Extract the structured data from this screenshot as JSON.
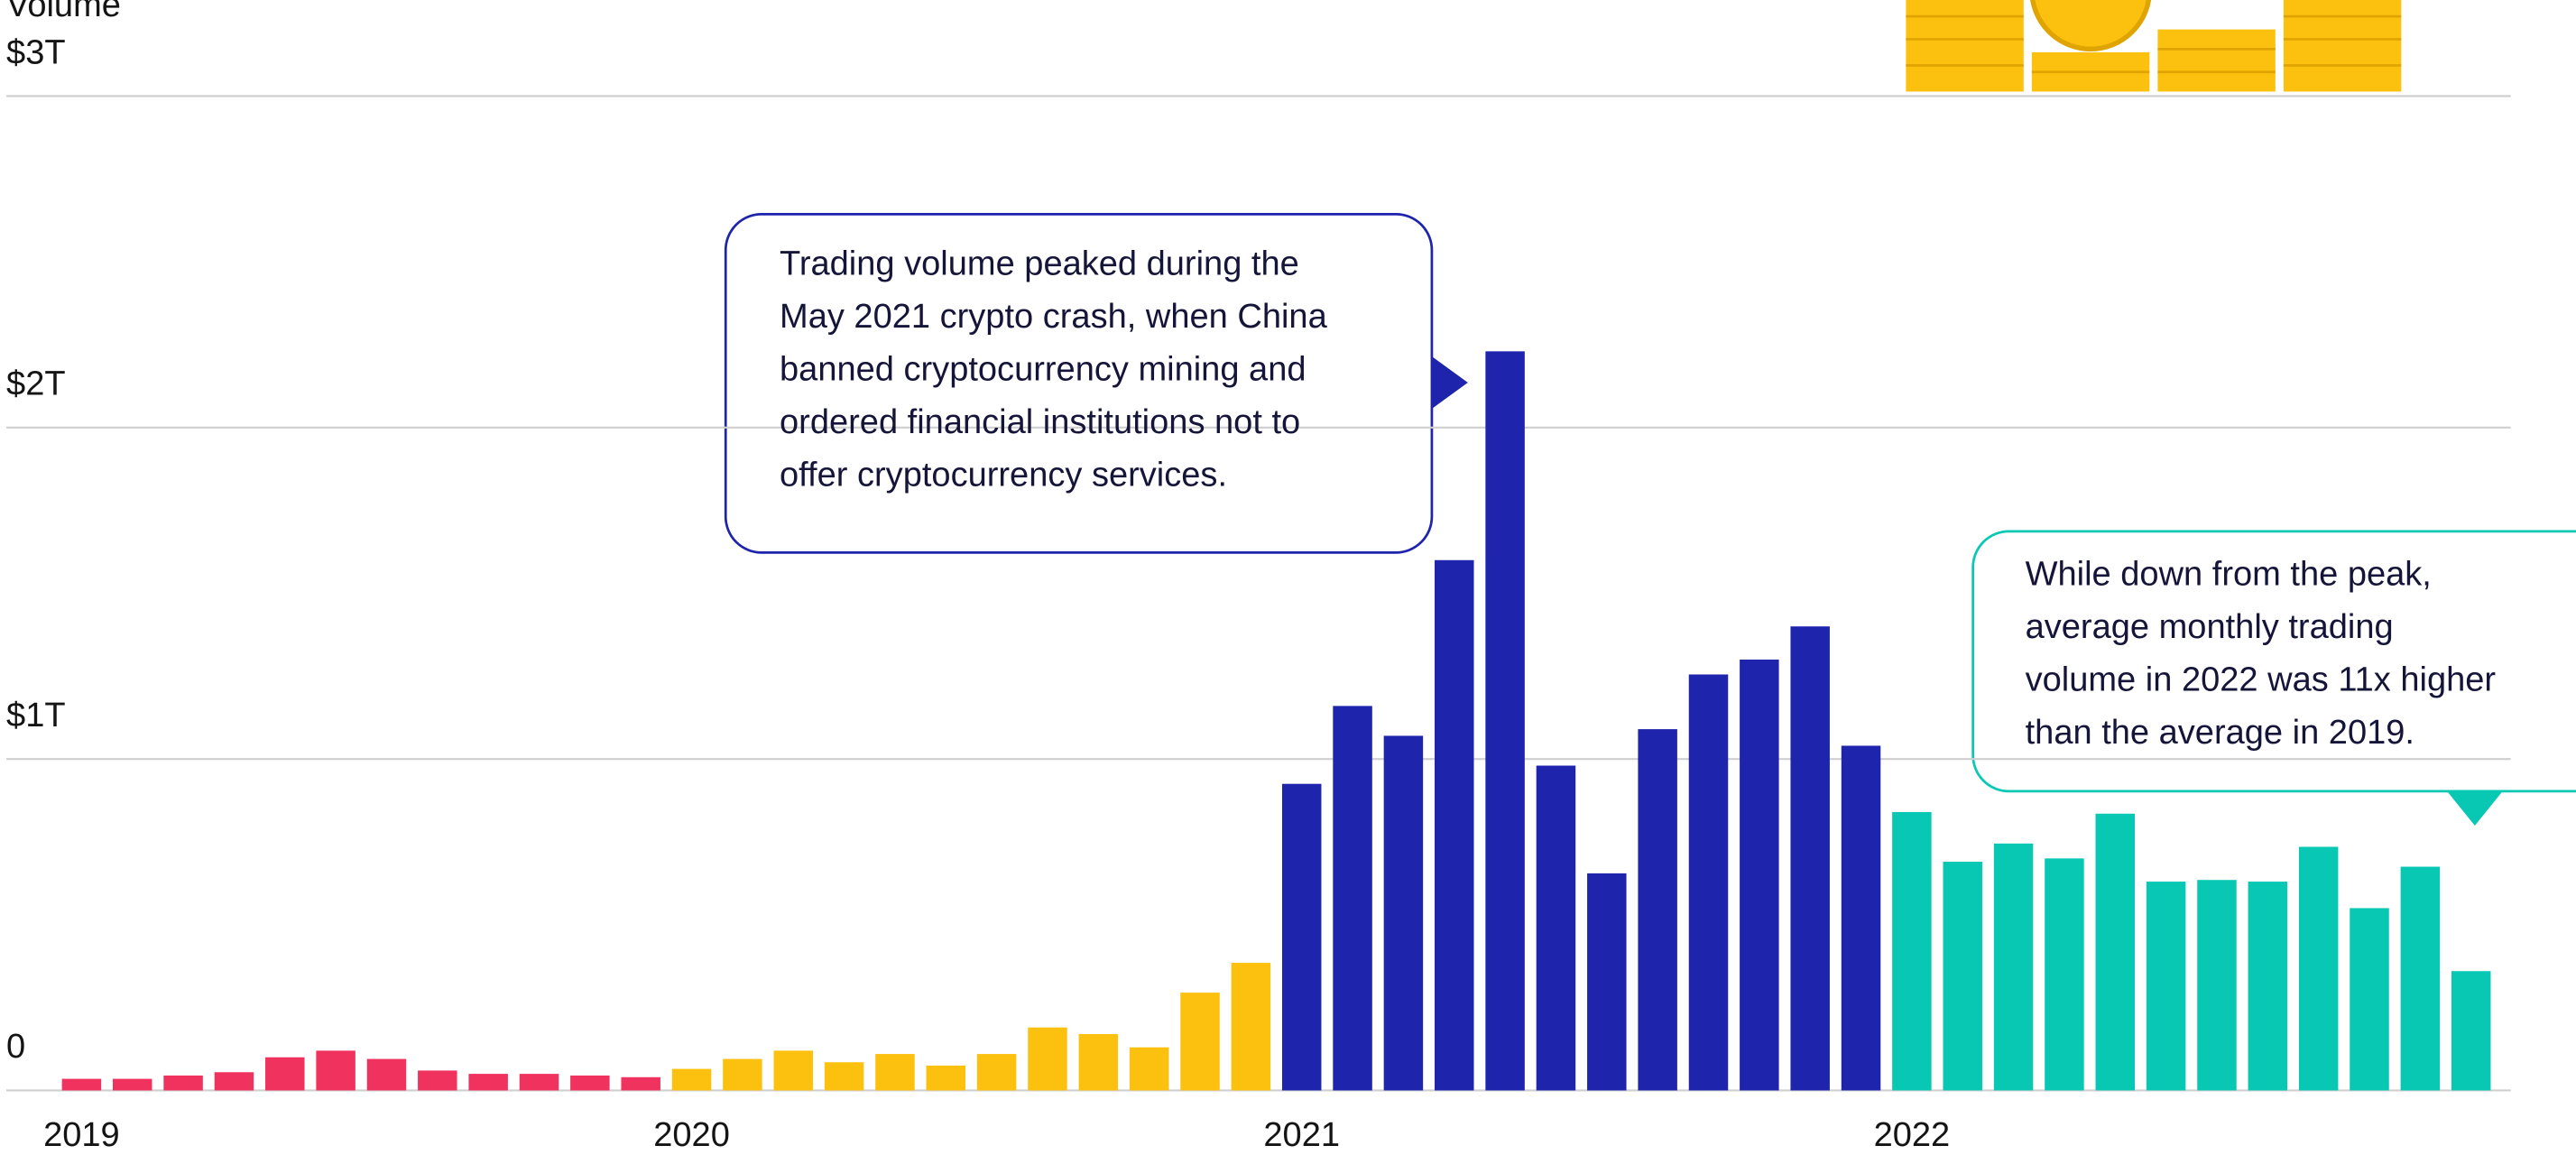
{
  "chart_data": {
    "type": "bar",
    "y_label": "Volume",
    "categories": [
      "2019",
      null,
      null,
      null,
      null,
      null,
      null,
      null,
      null,
      null,
      null,
      null,
      "2020",
      null,
      null,
      null,
      null,
      null,
      null,
      null,
      null,
      null,
      null,
      null,
      "2021",
      null,
      null,
      null,
      null,
      null,
      null,
      null,
      null,
      null,
      null,
      null,
      "2022",
      null,
      null,
      null,
      null,
      null,
      null,
      null,
      null,
      null,
      null,
      null
    ],
    "values": [
      0.035,
      0.035,
      0.045,
      0.055,
      0.1,
      0.12,
      0.095,
      0.06,
      0.05,
      0.05,
      0.045,
      0.04,
      0.065,
      0.095,
      0.12,
      0.085,
      0.11,
      0.075,
      0.11,
      0.19,
      0.17,
      0.13,
      0.295,
      0.385,
      0.925,
      1.16,
      1.07,
      1.6,
      2.23,
      0.98,
      0.655,
      1.09,
      1.255,
      1.3,
      1.4,
      1.04,
      0.84,
      0.69,
      0.745,
      0.7,
      0.835,
      0.63,
      0.635,
      0.63,
      0.735,
      0.55,
      0.675,
      0.36
    ],
    "colors": [
      "#f0325f",
      "#f0325f",
      "#f0325f",
      "#f0325f",
      "#f0325f",
      "#f0325f",
      "#f0325f",
      "#f0325f",
      "#f0325f",
      "#f0325f",
      "#f0325f",
      "#f0325f",
      "#fcc10e",
      "#fcc10e",
      "#fcc10e",
      "#fcc10e",
      "#fcc10e",
      "#fcc10e",
      "#fcc10e",
      "#fcc10e",
      "#fcc10e",
      "#fcc10e",
      "#fcc10e",
      "#fcc10e",
      "#1f24ad",
      "#1f24ad",
      "#1f24ad",
      "#1f24ad",
      "#1f24ad",
      "#1f24ad",
      "#1f24ad",
      "#1f24ad",
      "#1f24ad",
      "#1f24ad",
      "#1f24ad",
      "#1f24ad",
      "#08c8b4",
      "#08c8b4",
      "#08c8b4",
      "#08c8b4",
      "#08c8b4",
      "#08c8b4",
      "#08c8b4",
      "#08c8b4",
      "#08c8b4",
      "#08c8b4",
      "#08c8b4",
      "#08c8b4"
    ],
    "ylim": [
      0,
      3.29
    ],
    "yticks": [
      0,
      {
        "value": 1,
        "label": "$1T"
      },
      {
        "value": 2,
        "label": "$2T"
      },
      {
        "value": 3,
        "label": "$3T"
      }
    ],
    "grid": true,
    "annotations": [
      {
        "lines": [
          "Trading volume peaked during the",
          "May 2021 crypto crash, when China",
          "banned cryptocurrency mining and",
          "ordered financial institutions not to",
          "offer cryptocurrency services."
        ]
      },
      {
        "lines": [
          "While down from the peak,",
          "average monthly trading",
          "volume in 2022 was 11x higher",
          "than the average in 2019."
        ]
      }
    ]
  }
}
